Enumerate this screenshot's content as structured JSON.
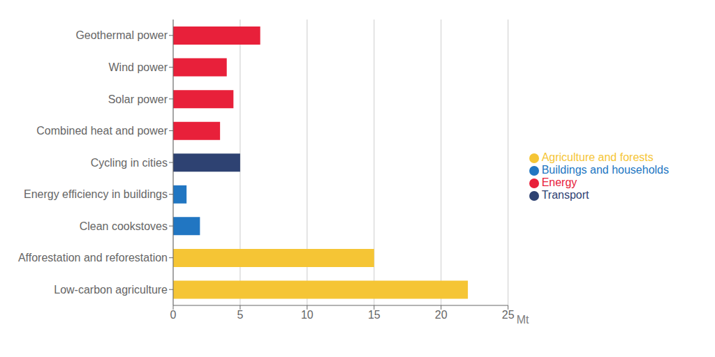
{
  "chart_data": {
    "type": "bar",
    "orientation": "horizontal",
    "x_label": "Mt",
    "categories": [
      "Low-carbon agriculture",
      "Afforestation and reforestation",
      "Clean cookstoves",
      "Energy efficiency in buildings",
      "Cycling in cities",
      "Combined heat and power",
      "Solar power",
      "Wind power",
      "Geothermal power"
    ],
    "series": [
      {
        "name": "Energy",
        "color": "#E8203A",
        "values": [
          null,
          null,
          null,
          null,
          null,
          3.5,
          4.5,
          4,
          6.5
        ]
      },
      {
        "name": "Transport",
        "color": "#2E4272",
        "values": [
          null,
          null,
          null,
          null,
          5,
          null,
          null,
          null,
          null
        ]
      },
      {
        "name": "Buildings and households",
        "color": "#2176C2",
        "values": [
          null,
          null,
          2,
          1,
          null,
          null,
          null,
          null,
          null
        ]
      },
      {
        "name": "Agriculture and forests",
        "color": "#F5C535",
        "values": [
          22,
          15,
          null,
          null,
          null,
          null,
          null,
          null,
          null
        ]
      }
    ],
    "xlim": [
      0,
      25
    ],
    "xticks": [
      0,
      5,
      10,
      15,
      20,
      25
    ],
    "grid": true,
    "legend": "right"
  }
}
